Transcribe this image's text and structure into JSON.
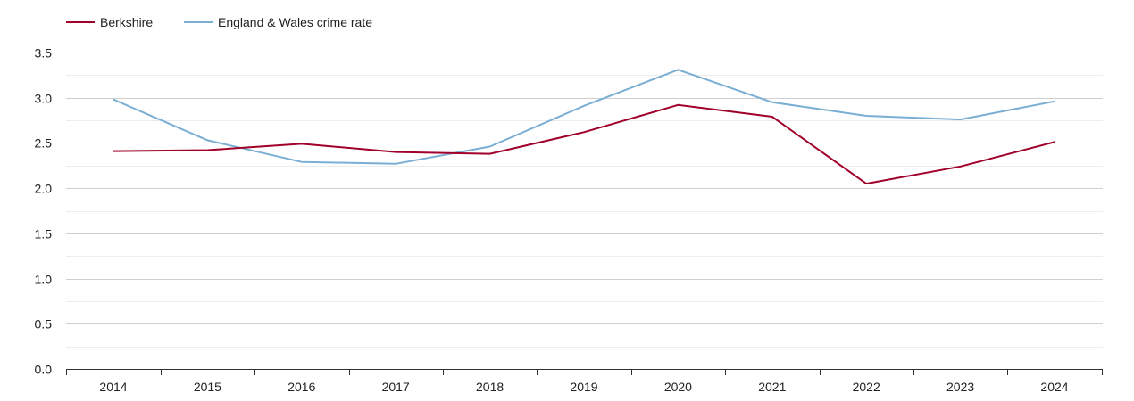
{
  "chart_data": {
    "type": "line",
    "title": "",
    "xlabel": "",
    "ylabel": "",
    "categories": [
      "2014",
      "2015",
      "2016",
      "2017",
      "2018",
      "2019",
      "2020",
      "2021",
      "2022",
      "2023",
      "2024"
    ],
    "ylim": [
      0,
      3.5
    ],
    "y_ticks": [
      "0.0",
      "0.5",
      "1.0",
      "1.5",
      "2.0",
      "2.5",
      "3.0",
      "3.5"
    ],
    "grid": true,
    "legend_position": "top-left",
    "series": [
      {
        "name": "Berkshire",
        "color": "#a0002a",
        "values": [
          2.41,
          2.42,
          2.49,
          2.4,
          2.38,
          2.62,
          2.92,
          2.79,
          2.05,
          2.24,
          2.51
        ]
      },
      {
        "name": "England & Wales crime rate",
        "color": "#7aaed3",
        "values": [
          2.98,
          2.53,
          2.29,
          2.27,
          2.46,
          2.91,
          3.31,
          2.95,
          2.8,
          2.76,
          2.96
        ]
      }
    ]
  }
}
